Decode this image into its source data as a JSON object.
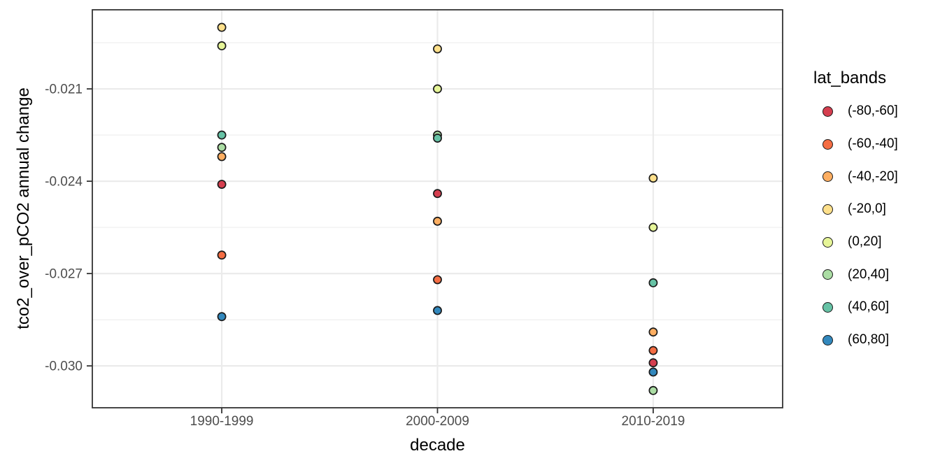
{
  "colors": {
    "background": "#ffffff",
    "panel_bg": "#ffffff",
    "panel_border": "#333333",
    "grid_major": "#ebebeb",
    "grid_minor": "#ededed",
    "tick_mark": "#333333",
    "tick_text": "#4d4d4d",
    "title_text": "#000000",
    "point_stroke": "#1a1a1a"
  },
  "legend": {
    "title": "lat_bands",
    "position": "right"
  },
  "chart_data": {
    "type": "scatter",
    "title": "",
    "xlabel": "decade",
    "ylabel": "tco2_over_pCO2 annual change",
    "categories": [
      "1990-1999",
      "2000-2009",
      "2010-2019"
    ],
    "ylim": [
      -0.03136,
      -0.01843
    ],
    "y_major_ticks": [
      -0.021,
      -0.024,
      -0.027,
      -0.03
    ],
    "y_tick_labels": [
      "-0.021",
      "-0.024",
      "-0.027",
      "-0.030"
    ],
    "y_minor_ticks": [
      -0.0195,
      -0.0225,
      -0.0255,
      -0.0285
    ],
    "grid": true,
    "legend_title": "lat_bands",
    "series": [
      {
        "name": "(-80,-60]",
        "color": "#d53e4f",
        "values": [
          -0.0241,
          -0.0244,
          -0.0299
        ]
      },
      {
        "name": "(-60,-40]",
        "color": "#f46d43",
        "values": [
          -0.0264,
          -0.0272,
          -0.0295
        ]
      },
      {
        "name": "(-40,-20]",
        "color": "#fdae61",
        "values": [
          -0.0232,
          -0.0253,
          -0.0289
        ]
      },
      {
        "name": "(-20,0]",
        "color": "#fee08b",
        "values": [
          -0.019,
          -0.0197,
          -0.0239
        ]
      },
      {
        "name": "(0,20]",
        "color": "#e6f598",
        "values": [
          -0.0196,
          -0.021,
          -0.0255
        ]
      },
      {
        "name": "(20,40]",
        "color": "#abdda4",
        "values": [
          -0.0229,
          -0.0225,
          -0.0308
        ]
      },
      {
        "name": "(40,60]",
        "color": "#66c2a5",
        "values": [
          -0.0225,
          -0.0226,
          -0.0273
        ]
      },
      {
        "name": "(60,80]",
        "color": "#3288bd",
        "values": [
          -0.0284,
          -0.0282,
          -0.0302
        ]
      }
    ]
  }
}
